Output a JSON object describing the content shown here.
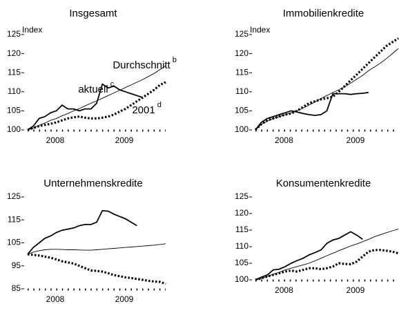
{
  "chart_data": [
    {
      "type": "line",
      "title": "Insgesamt",
      "y_label": "Index",
      "x": [
        2008.1,
        2008.183,
        2008.267,
        2008.35,
        2008.433,
        2008.517,
        2008.6,
        2008.683,
        2008.767,
        2008.85,
        2008.933,
        2009.017,
        2009.1,
        2009.183,
        2009.267,
        2009.35,
        2009.433,
        2009.517,
        2009.6,
        2009.683,
        2009.767,
        2009.85,
        2009.933,
        2010.017,
        2010.1
      ],
      "xlim": [
        2008.1,
        2010.1
      ],
      "xticks": [
        {
          "value": 2008.5,
          "label": "2008"
        },
        {
          "value": 2009.5,
          "label": "2009"
        }
      ],
      "ylim": [
        100,
        125
      ],
      "yticks": [
        100,
        105,
        110,
        115,
        120,
        125
      ],
      "series": [
        {
          "name": "aktuell",
          "note": "c",
          "style": "solid",
          "color": "#000",
          "values": [
            100,
            101,
            103,
            103.5,
            104.5,
            105,
            106.5,
            105.5,
            105.5,
            105,
            105.5,
            105.5,
            107,
            112,
            111,
            111.5,
            110.5,
            110,
            109.5,
            109,
            108.5,
            null,
            null,
            null,
            null
          ]
        },
        {
          "name": "Durchschnitt",
          "note": "b",
          "style": "thin",
          "color": "#000",
          "values": [
            100,
            100.5,
            101.2,
            101.8,
            102.5,
            103,
            103.7,
            104.3,
            105,
            105.6,
            106.3,
            107,
            107.6,
            108.3,
            109,
            109.7,
            110.4,
            111.1,
            111.8,
            112.5,
            113.2,
            114,
            114.8,
            115.8,
            116.8
          ]
        },
        {
          "name": "2001",
          "note": "d",
          "style": "dotted",
          "color": "#000",
          "values": [
            100,
            100.5,
            101,
            101.3,
            101.6,
            102,
            102.5,
            103,
            103.3,
            103.5,
            103.2,
            103,
            103,
            103.2,
            103.5,
            104,
            104.8,
            105.5,
            106.5,
            107.5,
            108.5,
            109.5,
            110.5,
            111.8,
            112.5
          ]
        }
      ]
    },
    {
      "type": "line",
      "title": "Immobilienkredite",
      "y_label": "Index",
      "x": [
        2008.1,
        2008.183,
        2008.267,
        2008.35,
        2008.433,
        2008.517,
        2008.6,
        2008.683,
        2008.767,
        2008.85,
        2008.933,
        2009.017,
        2009.1,
        2009.183,
        2009.267,
        2009.35,
        2009.433,
        2009.517,
        2009.6,
        2009.683,
        2009.767,
        2009.85,
        2009.933,
        2010.017,
        2010.1
      ],
      "xlim": [
        2008.1,
        2010.1
      ],
      "xticks": [
        {
          "value": 2008.5,
          "label": "2008"
        },
        {
          "value": 2009.5,
          "label": "2009"
        }
      ],
      "ylim": [
        100,
        125
      ],
      "yticks": [
        100,
        105,
        110,
        115,
        120,
        125
      ],
      "series": [
        {
          "style": "solid",
          "color": "#000",
          "values": [
            100,
            102,
            103,
            103.5,
            104,
            104.5,
            105,
            104.7,
            104.3,
            104,
            103.8,
            104,
            105,
            109.5,
            109.5,
            109.5,
            109.3,
            109.5,
            109.6,
            109.8,
            null,
            null,
            null,
            null,
            null
          ]
        },
        {
          "style": "thin",
          "color": "#000",
          "values": [
            100,
            101.5,
            102.3,
            103,
            103.5,
            104,
            104.5,
            105,
            105.7,
            106.5,
            107.3,
            108.2,
            109,
            109.8,
            110.5,
            111.3,
            112.3,
            113.3,
            114.3,
            115.5,
            116.5,
            117.5,
            118.7,
            120,
            121.3
          ]
        },
        {
          "style": "dotted",
          "color": "#000",
          "values": [
            100,
            101.5,
            102.5,
            103,
            103.5,
            104,
            104.3,
            105,
            106,
            107,
            107.5,
            108,
            108.3,
            108.7,
            110,
            111.5,
            113,
            114.5,
            116,
            117.5,
            119,
            120.5,
            122,
            123,
            124
          ]
        }
      ]
    },
    {
      "type": "line",
      "title": "Unternehmenskredite",
      "x": [
        2008.1,
        2008.183,
        2008.267,
        2008.35,
        2008.433,
        2008.517,
        2008.6,
        2008.683,
        2008.767,
        2008.85,
        2008.933,
        2009.017,
        2009.1,
        2009.183,
        2009.267,
        2009.35,
        2009.433,
        2009.517,
        2009.6,
        2009.683,
        2009.767,
        2009.85,
        2009.933,
        2010.017,
        2010.1
      ],
      "xlim": [
        2008.1,
        2010.1
      ],
      "xticks": [
        {
          "value": 2008.5,
          "label": "2008"
        },
        {
          "value": 2009.5,
          "label": "2009"
        }
      ],
      "ylim": [
        85,
        125
      ],
      "yticks": [
        85,
        95,
        105,
        115,
        125
      ],
      "series": [
        {
          "style": "solid",
          "color": "#000",
          "values": [
            100,
            103,
            105,
            107,
            108,
            109.5,
            110.5,
            111,
            111.5,
            112.5,
            113,
            113,
            114,
            119,
            118.8,
            117.5,
            116.5,
            115.5,
            114,
            112.5,
            null,
            null,
            null,
            null,
            null
          ]
        },
        {
          "style": "thin",
          "color": "#000",
          "values": [
            100,
            101,
            101.6,
            102,
            102.2,
            102.2,
            102.1,
            102,
            102,
            101.9,
            101.8,
            101.8,
            102,
            102.2,
            102.4,
            102.6,
            102.8,
            103,
            103.2,
            103.4,
            103.6,
            103.8,
            104,
            104.3,
            104.6
          ]
        },
        {
          "style": "dotted",
          "color": "#000",
          "values": [
            100,
            99.8,
            99.5,
            99,
            98.5,
            97.8,
            97,
            96.5,
            96,
            95,
            94,
            93,
            92.8,
            92.5,
            91.8,
            91,
            90.5,
            90,
            89.7,
            89.3,
            88.9,
            88.5,
            88.2,
            88,
            87.2
          ]
        }
      ]
    },
    {
      "type": "line",
      "title": "Konsumentenkredite",
      "x": [
        2008.1,
        2008.183,
        2008.267,
        2008.35,
        2008.433,
        2008.517,
        2008.6,
        2008.683,
        2008.767,
        2008.85,
        2008.933,
        2009.017,
        2009.1,
        2009.183,
        2009.267,
        2009.35,
        2009.433,
        2009.517,
        2009.6,
        2009.683,
        2009.767,
        2009.85,
        2009.933,
        2010.017,
        2010.1
      ],
      "xlim": [
        2008.1,
        2010.1
      ],
      "xticks": [
        {
          "value": 2008.5,
          "label": "2008"
        },
        {
          "value": 2009.5,
          "label": "2009"
        }
      ],
      "ylim": [
        100,
        125
      ],
      "yticks": [
        100,
        105,
        110,
        115,
        120,
        125
      ],
      "series": [
        {
          "style": "solid",
          "color": "#000",
          "values": [
            100,
            100.8,
            101.5,
            103,
            103.2,
            104,
            105,
            105.8,
            106.5,
            107.5,
            108.2,
            109,
            111,
            112,
            112.5,
            113.5,
            114.5,
            113.5,
            112.2,
            null,
            null,
            null,
            null,
            null,
            null
          ]
        },
        {
          "style": "thin",
          "color": "#000",
          "values": [
            100,
            100.4,
            101,
            101.7,
            102.3,
            103,
            103.5,
            104,
            104.5,
            105,
            105.7,
            106.5,
            107.3,
            108,
            108.8,
            109.5,
            110.2,
            110.8,
            111.5,
            112.2,
            113,
            113.6,
            114.2,
            114.8,
            115.3
          ]
        },
        {
          "style": "dotted",
          "color": "#000",
          "values": [
            100,
            100.5,
            101,
            101.5,
            102,
            102.5,
            102.8,
            102.5,
            103,
            103.5,
            103.5,
            103.2,
            103.5,
            104,
            105,
            104.8,
            104.7,
            105.5,
            107,
            108.5,
            109,
            109,
            108.8,
            108.5,
            108
          ]
        }
      ]
    }
  ]
}
